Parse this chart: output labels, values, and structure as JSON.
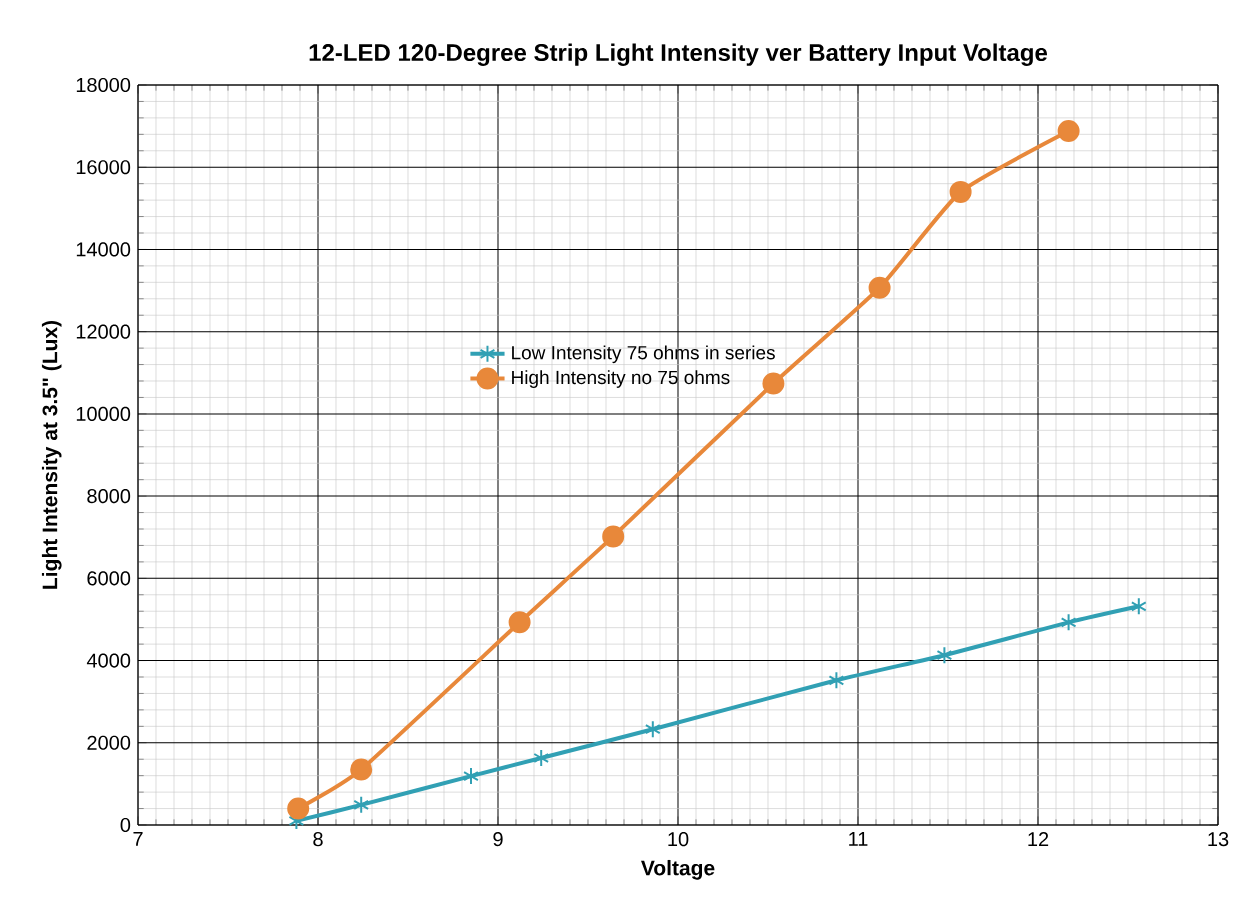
{
  "chart_data": {
    "type": "line",
    "title": "12-LED 120-Degree Strip Light Intensity ver Battery Input  Voltage",
    "xlabel": "Voltage",
    "ylabel": "Light Intensity at 3.5\" (Lux)",
    "xlim": [
      7,
      13
    ],
    "xticks": [
      7,
      8,
      9,
      10,
      11,
      12,
      13
    ],
    "ylim": [
      0,
      18000
    ],
    "yticks": [
      0,
      2000,
      4000,
      6000,
      8000,
      10000,
      12000,
      14000,
      16000,
      18000
    ],
    "grid": true,
    "legend": "left",
    "series": [
      {
        "name": "Low Intensity 75 ohms in series",
        "color": "#31a0b4",
        "marker": "cross",
        "x": [
          7.88,
          8.24,
          8.85,
          9.24,
          9.86,
          10.88,
          11.48,
          12.17,
          12.56
        ],
        "values": [
          100,
          490,
          1190,
          1630,
          2330,
          3520,
          4130,
          4930,
          5320
        ]
      },
      {
        "name": "High Intensity no 75 ohms",
        "color": "#e8883a",
        "marker": "circle",
        "x": [
          7.89,
          8.24,
          9.12,
          9.64,
          10.53,
          11.12,
          11.57,
          12.17
        ],
        "values": [
          400,
          1350,
          4930,
          7020,
          10740,
          13070,
          15400,
          16880
        ]
      }
    ]
  }
}
